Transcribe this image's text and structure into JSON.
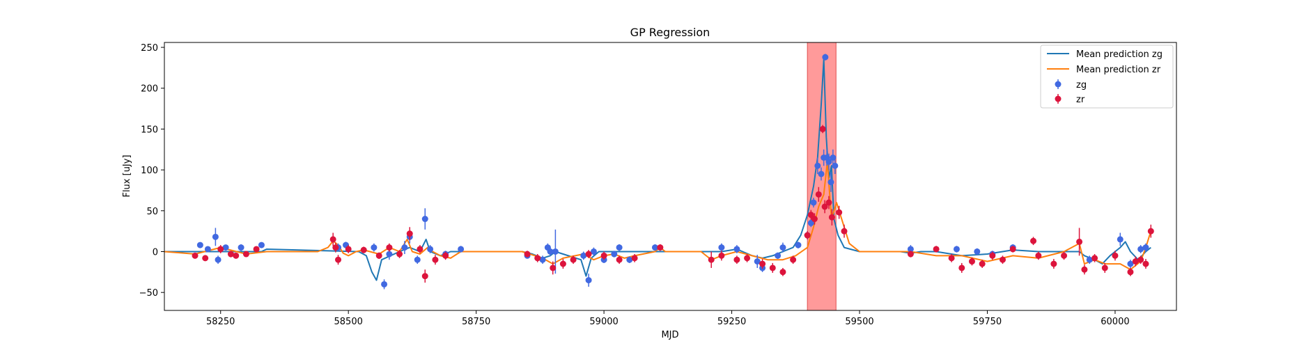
{
  "chart_data": {
    "type": "scatter",
    "title": "GP Regression",
    "xlabel": "MJD",
    "ylabel": "Flux [uJy]",
    "xlim": [
      58140,
      60120
    ],
    "ylim": [
      -72,
      256
    ],
    "x_ticks": [
      58250,
      58500,
      58750,
      59000,
      59250,
      59500,
      59750,
      60000
    ],
    "y_ticks": [
      -50,
      0,
      50,
      100,
      150,
      200,
      250
    ],
    "grid": false,
    "legend_position": "top-right",
    "highlight_region": {
      "x_range": [
        59398,
        59454
      ],
      "color": "#ff9a9a"
    },
    "series": [
      {
        "name": "Mean prediction zg",
        "kind": "line",
        "color": "#1f77b4",
        "x": [
          58140,
          58330,
          58340,
          58520,
          58535,
          58546,
          58555,
          58565,
          58600,
          58620,
          58640,
          58652,
          58660,
          58680,
          58700,
          58720,
          58840,
          58860,
          58880,
          58895,
          58905,
          58920,
          58955,
          58965,
          58975,
          58990,
          59000,
          59100,
          59230,
          59260,
          59290,
          59310,
          59330,
          59350,
          59370,
          59385,
          59398,
          59410,
          59418,
          59425,
          59430,
          59435,
          59440,
          59445,
          59450,
          59458,
          59470,
          59500,
          59580,
          59600,
          59620,
          59650,
          59700,
          59750,
          59800,
          59850,
          59930,
          59940,
          59960,
          59975,
          59990,
          60010,
          60020,
          60030,
          60045,
          60060,
          60070
        ],
        "y": [
          0,
          0,
          3,
          0,
          -5,
          -25,
          -35,
          -10,
          0,
          5,
          0,
          15,
          0,
          -5,
          0,
          0,
          0,
          -3,
          -8,
          -5,
          0,
          -3,
          -10,
          -30,
          -8,
          0,
          0,
          0,
          0,
          3,
          -5,
          -8,
          -5,
          0,
          5,
          20,
          45,
          80,
          115,
          180,
          235,
          140,
          90,
          105,
          40,
          20,
          5,
          0,
          0,
          -2,
          0,
          0,
          -5,
          -3,
          2,
          0,
          0,
          -5,
          -10,
          -15,
          -5,
          5,
          12,
          0,
          -10,
          0,
          5
        ]
      },
      {
        "name": "Mean prediction zr",
        "kind": "line",
        "color": "#ff7f0e",
        "x": [
          58140,
          58200,
          58250,
          58300,
          58340,
          58440,
          58460,
          58470,
          58480,
          58490,
          58500,
          58515,
          58530,
          58560,
          58580,
          58600,
          58615,
          58625,
          58640,
          58655,
          58665,
          58680,
          58700,
          58720,
          58840,
          58880,
          58900,
          58920,
          58960,
          58980,
          59000,
          59020,
          59040,
          59060,
          59100,
          59110,
          59120,
          59190,
          59210,
          59230,
          59260,
          59290,
          59320,
          59350,
          59375,
          59398,
          59410,
          59420,
          59430,
          59437,
          59445,
          59455,
          59470,
          59480,
          59500,
          59600,
          59650,
          59700,
          59750,
          59800,
          59850,
          59900,
          59930,
          59940,
          59960,
          59980,
          60010,
          60030,
          60050,
          60060,
          60070
        ],
        "y": [
          0,
          -3,
          5,
          -3,
          0,
          0,
          5,
          13,
          8,
          -2,
          -5,
          0,
          2,
          -3,
          5,
          0,
          15,
          0,
          -3,
          5,
          0,
          -5,
          -8,
          0,
          0,
          -8,
          -15,
          -8,
          -3,
          -10,
          -5,
          -3,
          -8,
          -5,
          0,
          5,
          0,
          0,
          -10,
          -5,
          0,
          -5,
          -10,
          -10,
          -5,
          5,
          30,
          55,
          70,
          110,
          40,
          60,
          30,
          10,
          0,
          0,
          -5,
          -5,
          -12,
          -5,
          -8,
          0,
          10,
          -15,
          -10,
          -15,
          -15,
          -22,
          -12,
          5,
          25
        ]
      },
      {
        "name": "zg",
        "kind": "scatter",
        "color": "#4169e1",
        "x": [
          58210,
          58225,
          58240,
          58245,
          58260,
          58290,
          58330,
          58480,
          58495,
          58550,
          58570,
          58580,
          58610,
          58620,
          58635,
          58650,
          58660,
          58690,
          58720,
          58850,
          58880,
          58890,
          58895,
          58905,
          58960,
          58970,
          58980,
          59000,
          59020,
          59030,
          59050,
          59100,
          59230,
          59260,
          59300,
          59310,
          59340,
          59350,
          59380,
          59398,
          59405,
          59410,
          59418,
          59425,
          59430,
          59433,
          59436,
          59440,
          59444,
          59448,
          59452,
          59600,
          59690,
          59730,
          59760,
          59800,
          59950,
          60010,
          60030,
          60050,
          60060
        ],
        "y": [
          8,
          3,
          18,
          -10,
          5,
          5,
          8,
          5,
          8,
          5,
          -40,
          -3,
          5,
          18,
          -10,
          40,
          3,
          -3,
          3,
          -5,
          -10,
          5,
          0,
          0,
          -5,
          -35,
          0,
          -10,
          -3,
          5,
          -10,
          5,
          5,
          3,
          -12,
          -20,
          -5,
          5,
          8,
          20,
          35,
          60,
          105,
          95,
          115,
          238,
          115,
          110,
          85,
          115,
          105,
          3,
          3,
          0,
          -3,
          5,
          -10,
          15,
          -15,
          3,
          5
        ],
        "error": [
          3,
          3,
          11,
          5,
          3,
          4,
          3,
          5,
          4,
          5,
          6,
          7,
          8,
          8,
          5,
          13,
          5,
          4,
          4,
          3,
          5,
          5,
          5,
          27,
          5,
          8,
          5,
          4,
          4,
          4,
          4,
          4,
          5,
          5,
          8,
          5,
          4,
          6,
          4,
          5,
          5,
          6,
          10,
          8,
          10,
          4,
          10,
          10,
          12,
          10,
          10,
          5,
          4,
          4,
          4,
          4,
          5,
          8,
          5,
          5,
          5
        ]
      },
      {
        "name": "zr",
        "kind": "scatter",
        "color": "#dc143c",
        "x": [
          58200,
          58220,
          58250,
          58270,
          58280,
          58300,
          58320,
          58470,
          58475,
          58480,
          58500,
          58530,
          58560,
          58580,
          58600,
          58620,
          58640,
          58650,
          58670,
          58690,
          58850,
          58870,
          58900,
          58920,
          58940,
          58970,
          59000,
          59030,
          59060,
          59110,
          59210,
          59230,
          59260,
          59280,
          59310,
          59330,
          59350,
          59370,
          59398,
          59405,
          59412,
          59420,
          59428,
          59432,
          59440,
          59446,
          59460,
          59470,
          59600,
          59650,
          59680,
          59700,
          59720,
          59740,
          59760,
          59780,
          59800,
          59840,
          59850,
          59880,
          59900,
          59930,
          59940,
          59960,
          59980,
          60000,
          60030,
          60040,
          60050,
          60060,
          60070
        ],
        "y": [
          -5,
          -8,
          3,
          -3,
          -5,
          -3,
          3,
          15,
          5,
          -10,
          3,
          2,
          -5,
          5,
          -3,
          22,
          3,
          -30,
          -10,
          -5,
          -3,
          -8,
          -20,
          -15,
          -10,
          -3,
          -5,
          -10,
          -8,
          5,
          -10,
          -5,
          -10,
          -8,
          -15,
          -20,
          -25,
          -10,
          20,
          45,
          40,
          70,
          150,
          55,
          60,
          42,
          48,
          25,
          -3,
          3,
          -8,
          -20,
          -12,
          -15,
          -5,
          -10,
          3,
          13,
          -5,
          -15,
          -5,
          12,
          -22,
          -8,
          -20,
          -5,
          -25,
          -12,
          -10,
          -15,
          25
        ],
        "error": [
          3,
          3,
          5,
          4,
          3,
          3,
          3,
          8,
          6,
          6,
          5,
          4,
          4,
          5,
          5,
          8,
          5,
          8,
          6,
          5,
          4,
          5,
          8,
          6,
          5,
          5,
          5,
          5,
          5,
          4,
          10,
          6,
          5,
          5,
          6,
          6,
          5,
          5,
          5,
          6,
          7,
          9,
          5,
          8,
          8,
          10,
          8,
          8,
          4,
          4,
          5,
          6,
          5,
          5,
          5,
          5,
          4,
          5,
          5,
          6,
          5,
          17,
          6,
          5,
          6,
          6,
          5,
          6,
          5,
          6,
          8
        ]
      }
    ]
  }
}
